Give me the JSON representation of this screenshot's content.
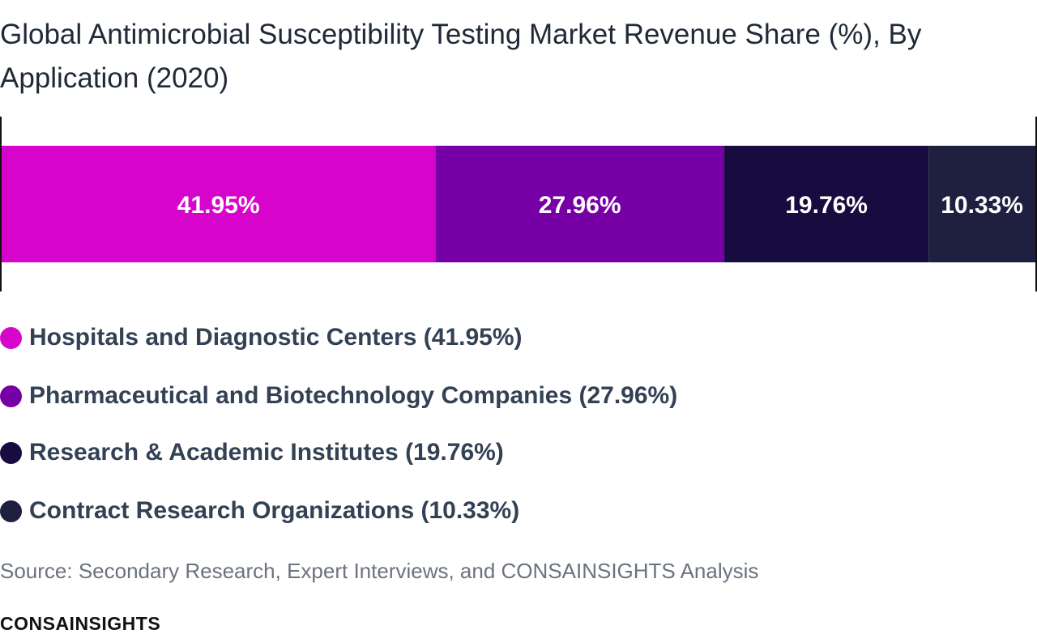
{
  "chart_data": {
    "type": "bar",
    "orientation": "horizontal-stacked-100",
    "title": "Global Antimicrobial Susceptibility Testing Market Revenue Share (%), By Application (2020)",
    "categories": [
      "Hospitals and Diagnostic Centers",
      "Pharmaceutical and Biotechnology Companies",
      "Research & Academic Institutes",
      "Contract Research Organizations"
    ],
    "values": [
      41.95,
      27.96,
      19.76,
      10.33
    ],
    "value_labels": [
      "41.95%",
      "27.96%",
      "19.76%",
      "10.33%"
    ],
    "colors": [
      "#d705cb",
      "#7600a6",
      "#170b3f",
      "#1f1f3f"
    ],
    "xlim": [
      0,
      100
    ],
    "grid": false,
    "legend": {
      "placement": "bottom",
      "entries": [
        "Hospitals and Diagnostic Centers (41.95%)",
        "Pharmaceutical and Biotechnology Companies (27.96%)",
        "Research & Academic Institutes (19.76%)",
        "Contract Research Organizations (10.33%)"
      ]
    }
  },
  "source": "Source: Secondary Research, Expert Interviews, and CONSAINSIGHTS Analysis",
  "brand": "CONSAINSIGHTS"
}
